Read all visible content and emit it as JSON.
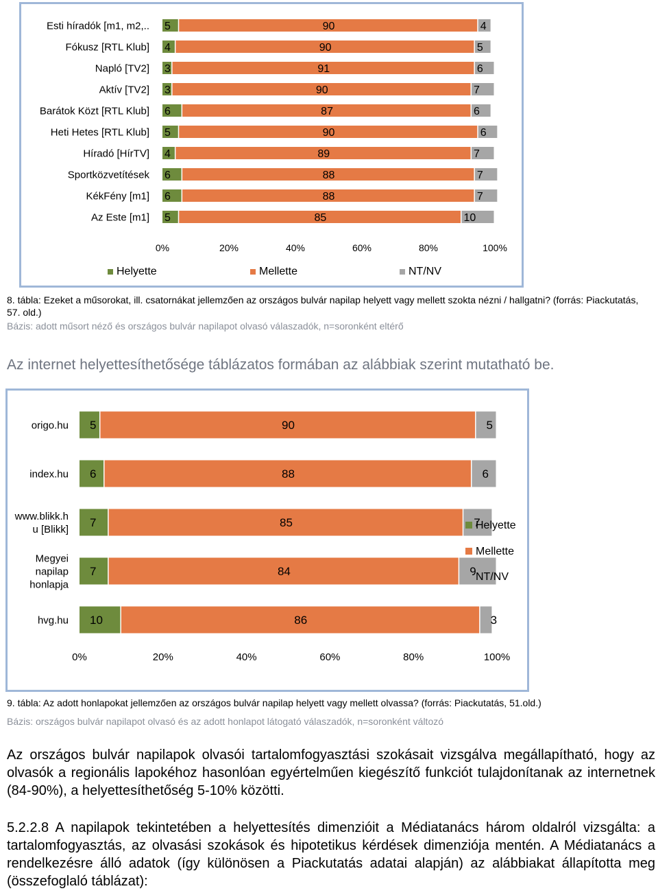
{
  "chart1": {
    "chart_data": {
      "type": "bar",
      "orientation": "horizontal-stacked-100",
      "categories": [
        "Esti híradók [m1, m2,..",
        "Fókusz [RTL Klub]",
        "Napló [TV2]",
        "Aktív [TV2]",
        "Barátok Közt [RTL Klub]",
        "Heti Hetes [RTL Klub]",
        "Híradó [HírTV]",
        "Sportközvetítések",
        "KékFény [m1]",
        "Az Este [m1]"
      ],
      "series": [
        {
          "name": "Helyette",
          "color": "#6e8b3d",
          "values": [
            5,
            4,
            3,
            3,
            6,
            5,
            4,
            6,
            6,
            5
          ]
        },
        {
          "name": "Mellette",
          "color": "#e57a45",
          "values": [
            90,
            90,
            91,
            90,
            87,
            90,
            89,
            88,
            88,
            85
          ]
        },
        {
          "name": "NT/NV",
          "color": "#a6a6a6",
          "values": [
            4,
            5,
            6,
            7,
            6,
            6,
            7,
            7,
            7,
            10
          ]
        }
      ],
      "xlim": [
        0,
        100
      ],
      "xticks": [
        "0%",
        "20%",
        "40%",
        "60%",
        "80%",
        "100%"
      ],
      "legend": "bottom",
      "grid": false
    }
  },
  "caption1": "8. tábla: Ezeket a műsorokat, ill. csatornákat jellemzően az országos bulvár napilap helyett vagy mellett szokta nézni / hallgatni? (forrás: Piackutatás, 57. old.)",
  "basis1": "Bázis: adott műsort néző és országos bulvár napilapot olvasó válaszadók, n=soronként eltérő",
  "heading": "Az internet helyettesíthetősége táblázatos formában az alábbiak szerint mutatható be.",
  "chart2": {
    "chart_data": {
      "type": "bar",
      "orientation": "horizontal-stacked-100",
      "categories": [
        [
          "origo.hu"
        ],
        [
          "index.hu"
        ],
        [
          "www.blikk.h",
          "u [Blikk]"
        ],
        [
          "Megyei",
          "napilap",
          "honlapja"
        ],
        [
          "hvg.hu"
        ]
      ],
      "series": [
        {
          "name": "Helyette",
          "color": "#6e8b3d",
          "values": [
            5,
            6,
            7,
            7,
            10
          ]
        },
        {
          "name": "Mellette",
          "color": "#e57a45",
          "values": [
            90,
            88,
            85,
            84,
            86
          ]
        },
        {
          "name": "NT/NV",
          "color": "#a6a6a6",
          "values": [
            5,
            6,
            7,
            9,
            3
          ]
        }
      ],
      "xlim": [
        0,
        100
      ],
      "xticks": [
        "0%",
        "20%",
        "40%",
        "60%",
        "80%",
        "100%"
      ],
      "legend": "right",
      "grid": false
    }
  },
  "caption2": "9. tábla: Az adott honlapokat jellemzően az országos bulvár napilap helyett vagy mellett olvassa? (forrás: Piackutatás, 51.old.)",
  "basis2": "Bázis: országos bulvár napilapot olvasó és az adott honlapot látogató válaszadók, n=soronként változó",
  "para1": "Az országos bulvár napilapok olvasói tartalomfogyasztási szokásait vizsgálva megállapítható, hogy az olvasók a regionális lapokéhoz hasonlóan egyértelműen kiegészítő funkciót tulajdonítanak az internetnek (84-90%), a helyettesíthetőség 5-10% közötti.",
  "para2": "5.2.2.8 A napilapok tekintetében a helyettesítés dimenzióit a Médiatanács három oldalról vizsgálta: a tartalomfogyasztás, az olvasási szokások és hipotetikus kérdések dimenziója mentén. A Médiatanács a rendelkezésre álló adatok (így különösen a Piackutatás adatai alapján) az alábbiakat állapította meg (összefoglaló táblázat):"
}
